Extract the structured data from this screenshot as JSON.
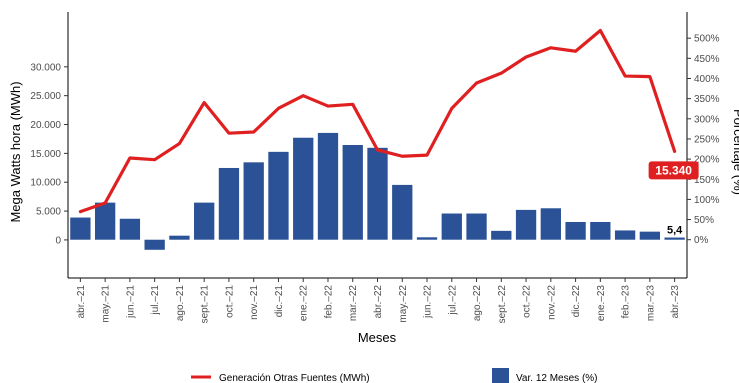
{
  "chart_data": {
    "type": "bar+line",
    "categories": [
      "abr.–21",
      "may.–21",
      "jun.–21",
      "jul.–21",
      "ago.–21",
      "sept.–21",
      "oct.–21",
      "nov.–21",
      "dic.–21",
      "ene.–22",
      "feb.–22",
      "mar.–22",
      "abr.–22",
      "may.–22",
      "jun.–22",
      "jul.–22",
      "ago.–22",
      "sept.–22",
      "oct.–22",
      "nov.–22",
      "dic.–22",
      "ene.–23",
      "feb.–23",
      "mar.–23",
      "abr.–23"
    ],
    "series": [
      {
        "name": "Generación Otras Fuentes (MWh)",
        "kind": "line",
        "axis": "left",
        "color": "#e02020",
        "values": [
          4900,
          6400,
          14200,
          13900,
          16700,
          23800,
          18500,
          18700,
          22800,
          25000,
          23200,
          23500,
          15600,
          14500,
          14700,
          22800,
          27200,
          28900,
          31700,
          33300,
          32700,
          36300,
          28400,
          28300,
          15340
        ]
      },
      {
        "name": "Var. 12 Meses (%)",
        "kind": "bar",
        "axis": "right",
        "color": "#2b5296",
        "values": [
          55,
          92,
          52,
          -25,
          10,
          92,
          178,
          192,
          218,
          253,
          265,
          235,
          228,
          136,
          6,
          65,
          65,
          22,
          74,
          78,
          44,
          44,
          23,
          20,
          5.4
        ]
      }
    ],
    "ylabel": "Mega Watts hora (MWh)",
    "y2label": "Porcentaje (%)",
    "xlabel": "Meses",
    "ylim": [
      -6600,
      39500
    ],
    "y2lim": [
      -95,
      565
    ],
    "yticks": [
      0,
      5000,
      10000,
      15000,
      20000,
      25000,
      30000
    ],
    "ytick_labels": [
      "0",
      "5.000",
      "10.000",
      "15.000",
      "20.000",
      "25.000",
      "30.000"
    ],
    "y2ticks": [
      0,
      50,
      100,
      150,
      200,
      250,
      300,
      350,
      400,
      450,
      500
    ],
    "y2tick_labels": [
      "0%",
      "50%",
      "100%",
      "150%",
      "200%",
      "250%",
      "300%",
      "350%",
      "400%",
      "450%",
      "500%"
    ],
    "annotations": [
      {
        "series": "line",
        "label": "15.340",
        "bg": "#e02020",
        "fg": "#ffffff"
      },
      {
        "series": "bar",
        "label": "5,4",
        "fg": "#000000"
      }
    ],
    "grid": false,
    "legend_position": "bottom",
    "legend": [
      {
        "label": "Generación Otras Fuentes (MWh)",
        "marker": "line",
        "color": "#e02020"
      },
      {
        "label": "Var. 12 Meses (%)",
        "marker": "square",
        "color": "#2b5296"
      }
    ]
  }
}
